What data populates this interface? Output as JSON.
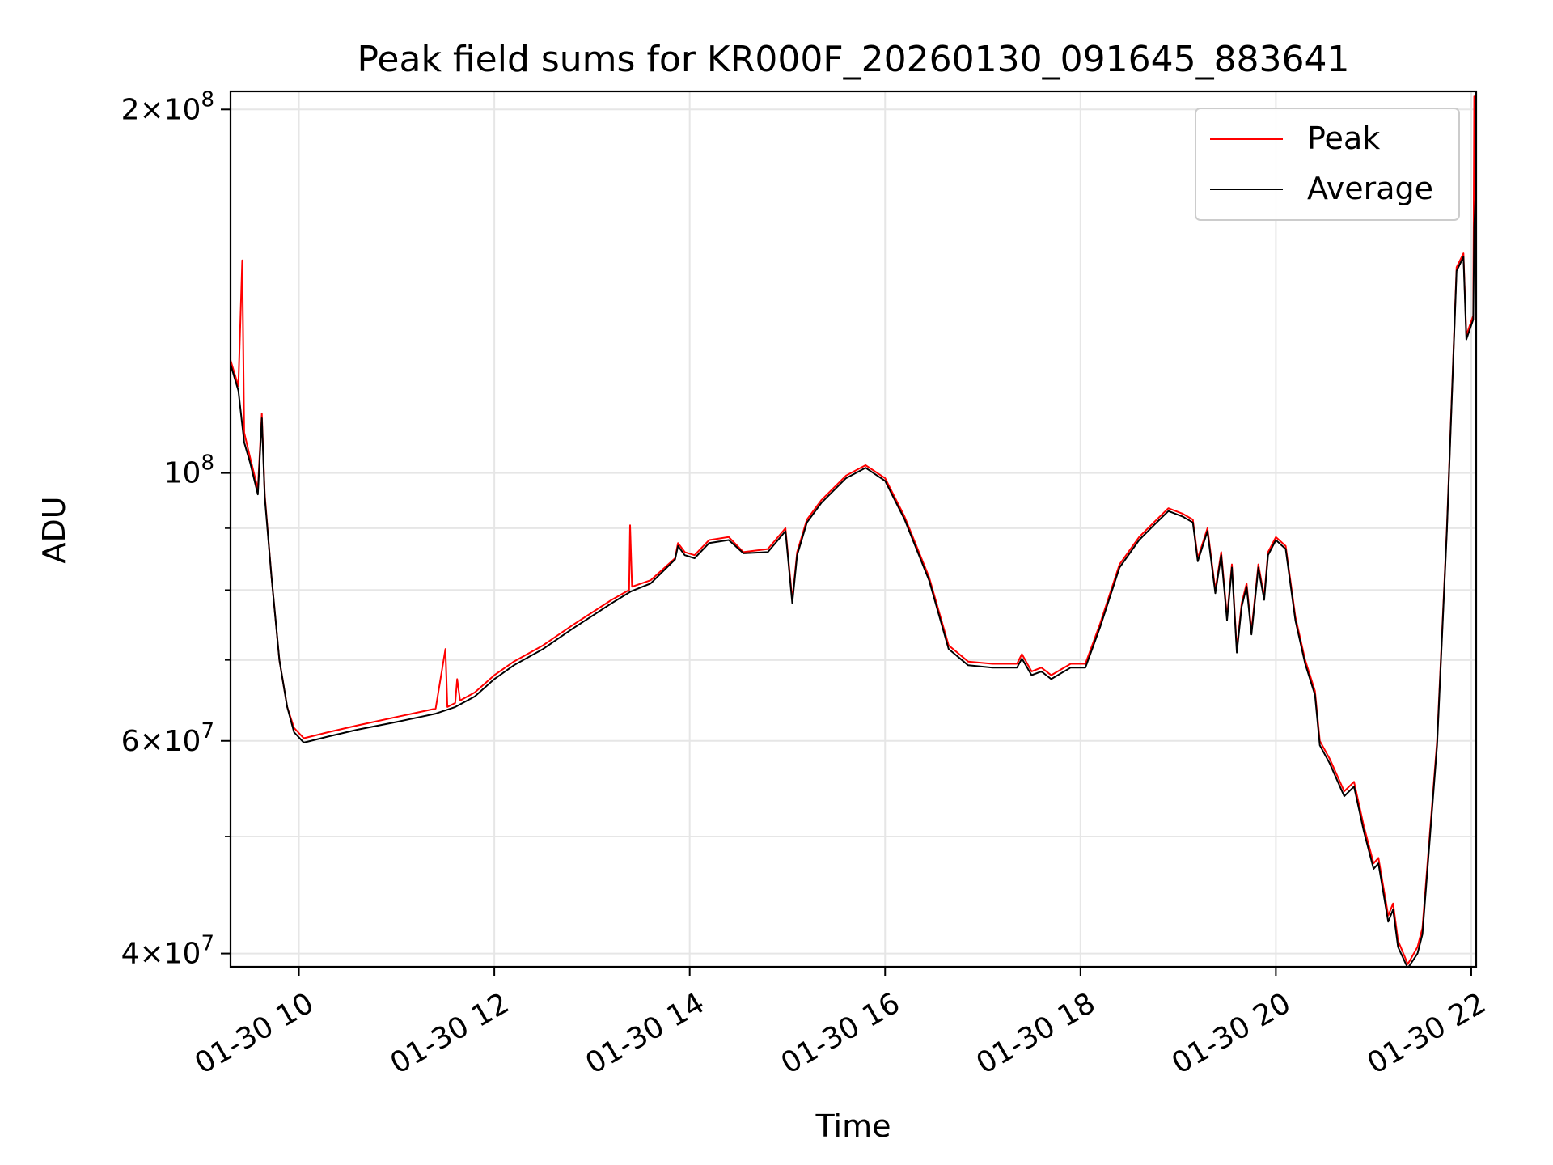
{
  "chart_data": {
    "type": "line",
    "title": "Peak field sums for KR000F_20260130_091645_883641",
    "xlabel": "Time",
    "ylabel": "ADU",
    "yscale": "log",
    "grid": true,
    "legend_position": "top-right",
    "xlim": [
      9.3,
      22.05
    ],
    "ylim": [
      39000000,
      207000000
    ],
    "x_ticks": [
      {
        "value": 10,
        "label": "01-30 10"
      },
      {
        "value": 12,
        "label": "01-30 12"
      },
      {
        "value": 14,
        "label": "01-30 14"
      },
      {
        "value": 16,
        "label": "01-30 16"
      },
      {
        "value": 18,
        "label": "01-30 18"
      },
      {
        "value": 20,
        "label": "01-30 20"
      },
      {
        "value": 22,
        "label": "01-30 22"
      }
    ],
    "y_major_ticks": [
      {
        "value": 40000000,
        "base": "4",
        "exp": "7"
      },
      {
        "value": 60000000,
        "base": "6",
        "exp": "7"
      },
      {
        "value": 100000000,
        "base": "",
        "exp": "8"
      },
      {
        "value": 200000000,
        "base": "2",
        "exp": "8"
      }
    ],
    "y_minor_ticks": [
      50000000,
      70000000,
      80000000,
      90000000
    ],
    "times_symbol": "×",
    "ten": "10",
    "series": [
      {
        "name": "Peak",
        "color": "#ff0000",
        "points": [
          [
            9.3,
            124000000
          ],
          [
            9.38,
            118000000
          ],
          [
            9.42,
            150000000
          ],
          [
            9.44,
            108000000
          ],
          [
            9.5,
            103000000
          ],
          [
            9.58,
            97000000
          ],
          [
            9.62,
            112000000
          ],
          [
            9.65,
            96000000
          ],
          [
            9.72,
            82000000
          ],
          [
            9.8,
            70000000
          ],
          [
            9.88,
            64000000
          ],
          [
            9.95,
            61500000
          ],
          [
            10.05,
            60300000
          ],
          [
            10.3,
            61000000
          ],
          [
            10.6,
            61800000
          ],
          [
            11.0,
            62800000
          ],
          [
            11.4,
            63800000
          ],
          [
            11.5,
            71500000
          ],
          [
            11.52,
            64000000
          ],
          [
            11.6,
            64500000
          ],
          [
            11.62,
            67500000
          ],
          [
            11.65,
            64800000
          ],
          [
            11.8,
            65800000
          ],
          [
            12.0,
            68000000
          ],
          [
            12.2,
            69800000
          ],
          [
            12.5,
            72000000
          ],
          [
            12.8,
            74800000
          ],
          [
            13.2,
            78500000
          ],
          [
            13.38,
            80000000
          ],
          [
            13.39,
            90500000
          ],
          [
            13.41,
            80500000
          ],
          [
            13.6,
            81500000
          ],
          [
            13.85,
            85000000
          ],
          [
            13.88,
            87500000
          ],
          [
            13.95,
            86000000
          ],
          [
            14.05,
            85500000
          ],
          [
            14.2,
            88000000
          ],
          [
            14.4,
            88500000
          ],
          [
            14.55,
            86000000
          ],
          [
            14.8,
            86500000
          ],
          [
            14.98,
            90000000
          ],
          [
            15.05,
            78500000
          ],
          [
            15.1,
            86000000
          ],
          [
            15.2,
            91500000
          ],
          [
            15.35,
            95000000
          ],
          [
            15.6,
            99500000
          ],
          [
            15.8,
            101500000
          ],
          [
            16.0,
            99000000
          ],
          [
            16.2,
            92000000
          ],
          [
            16.45,
            82000000
          ],
          [
            16.65,
            72000000
          ],
          [
            16.85,
            69800000
          ],
          [
            17.1,
            69500000
          ],
          [
            17.35,
            69500000
          ],
          [
            17.4,
            70800000
          ],
          [
            17.5,
            68500000
          ],
          [
            17.6,
            69000000
          ],
          [
            17.7,
            68000000
          ],
          [
            17.9,
            69500000
          ],
          [
            18.05,
            69500000
          ],
          [
            18.2,
            75000000
          ],
          [
            18.4,
            84000000
          ],
          [
            18.6,
            88500000
          ],
          [
            18.75,
            91000000
          ],
          [
            18.9,
            93500000
          ],
          [
            19.05,
            92500000
          ],
          [
            19.15,
            91500000
          ],
          [
            19.2,
            85000000
          ],
          [
            19.3,
            90000000
          ],
          [
            19.38,
            80000000
          ],
          [
            19.44,
            86000000
          ],
          [
            19.5,
            76000000
          ],
          [
            19.55,
            84000000
          ],
          [
            19.6,
            71500000
          ],
          [
            19.65,
            78000000
          ],
          [
            19.7,
            81000000
          ],
          [
            19.75,
            74000000
          ],
          [
            19.82,
            84000000
          ],
          [
            19.88,
            79000000
          ],
          [
            19.92,
            86000000
          ],
          [
            20.0,
            88500000
          ],
          [
            20.1,
            87000000
          ],
          [
            20.2,
            76000000
          ],
          [
            20.3,
            70000000
          ],
          [
            20.4,
            66000000
          ],
          [
            20.45,
            60000000
          ],
          [
            20.55,
            58000000
          ],
          [
            20.7,
            54500000
          ],
          [
            20.8,
            55500000
          ],
          [
            20.9,
            51000000
          ],
          [
            21.0,
            47500000
          ],
          [
            21.05,
            48000000
          ],
          [
            21.15,
            43000000
          ],
          [
            21.2,
            44000000
          ],
          [
            21.25,
            41000000
          ],
          [
            21.35,
            39200000
          ],
          [
            21.45,
            40500000
          ],
          [
            21.5,
            42000000
          ],
          [
            21.65,
            60000000
          ],
          [
            21.75,
            90000000
          ],
          [
            21.85,
            148000000
          ],
          [
            21.92,
            152000000
          ],
          [
            21.95,
            130000000
          ],
          [
            22.02,
            135000000
          ],
          [
            22.03,
            205000000
          ],
          [
            22.05,
            190000000
          ]
        ]
      },
      {
        "name": "Average",
        "color": "#000000",
        "points": [
          [
            9.3,
            123000000
          ],
          [
            9.38,
            117000000
          ],
          [
            9.44,
            106000000
          ],
          [
            9.5,
            102000000
          ],
          [
            9.58,
            96000000
          ],
          [
            9.62,
            111000000
          ],
          [
            9.65,
            95500000
          ],
          [
            9.72,
            82000000
          ],
          [
            9.8,
            70000000
          ],
          [
            9.88,
            64000000
          ],
          [
            9.95,
            61000000
          ],
          [
            10.05,
            59800000
          ],
          [
            10.3,
            60500000
          ],
          [
            10.6,
            61300000
          ],
          [
            11.0,
            62200000
          ],
          [
            11.4,
            63200000
          ],
          [
            11.6,
            64000000
          ],
          [
            11.8,
            65300000
          ],
          [
            12.0,
            67500000
          ],
          [
            12.2,
            69300000
          ],
          [
            12.5,
            71500000
          ],
          [
            12.8,
            74300000
          ],
          [
            13.2,
            78000000
          ],
          [
            13.4,
            79800000
          ],
          [
            13.6,
            81000000
          ],
          [
            13.85,
            84800000
          ],
          [
            13.88,
            87000000
          ],
          [
            13.95,
            85500000
          ],
          [
            14.05,
            85000000
          ],
          [
            14.2,
            87500000
          ],
          [
            14.4,
            88000000
          ],
          [
            14.55,
            85800000
          ],
          [
            14.8,
            86000000
          ],
          [
            14.98,
            89500000
          ],
          [
            15.05,
            78000000
          ],
          [
            15.1,
            85500000
          ],
          [
            15.2,
            91000000
          ],
          [
            15.35,
            94500000
          ],
          [
            15.6,
            99000000
          ],
          [
            15.8,
            101000000
          ],
          [
            16.0,
            98500000
          ],
          [
            16.2,
            91500000
          ],
          [
            16.45,
            81500000
          ],
          [
            16.65,
            71500000
          ],
          [
            16.85,
            69300000
          ],
          [
            17.1,
            69000000
          ],
          [
            17.35,
            69000000
          ],
          [
            17.4,
            70200000
          ],
          [
            17.5,
            68000000
          ],
          [
            17.6,
            68500000
          ],
          [
            17.7,
            67500000
          ],
          [
            17.9,
            69000000
          ],
          [
            18.05,
            69000000
          ],
          [
            18.2,
            74500000
          ],
          [
            18.4,
            83500000
          ],
          [
            18.6,
            88000000
          ],
          [
            18.75,
            90500000
          ],
          [
            18.9,
            93000000
          ],
          [
            19.05,
            92000000
          ],
          [
            19.15,
            91000000
          ],
          [
            19.2,
            84500000
          ],
          [
            19.3,
            89500000
          ],
          [
            19.38,
            79500000
          ],
          [
            19.44,
            85500000
          ],
          [
            19.5,
            75500000
          ],
          [
            19.55,
            83500000
          ],
          [
            19.6,
            71000000
          ],
          [
            19.65,
            77500000
          ],
          [
            19.7,
            80500000
          ],
          [
            19.75,
            73500000
          ],
          [
            19.82,
            83500000
          ],
          [
            19.88,
            78500000
          ],
          [
            19.92,
            85500000
          ],
          [
            20.0,
            88000000
          ],
          [
            20.1,
            86500000
          ],
          [
            20.2,
            75500000
          ],
          [
            20.3,
            69500000
          ],
          [
            20.4,
            65500000
          ],
          [
            20.45,
            59500000
          ],
          [
            20.55,
            57500000
          ],
          [
            20.7,
            54000000
          ],
          [
            20.8,
            55000000
          ],
          [
            20.9,
            50500000
          ],
          [
            21.0,
            47000000
          ],
          [
            21.05,
            47500000
          ],
          [
            21.15,
            42500000
          ],
          [
            21.2,
            43500000
          ],
          [
            21.25,
            40500000
          ],
          [
            21.35,
            38900000
          ],
          [
            21.45,
            40000000
          ],
          [
            21.5,
            41500000
          ],
          [
            21.65,
            59500000
          ],
          [
            21.75,
            89500000
          ],
          [
            21.85,
            147000000
          ],
          [
            21.92,
            151000000
          ],
          [
            21.95,
            129000000
          ],
          [
            22.02,
            134000000
          ],
          [
            22.03,
            160000000
          ],
          [
            22.05,
            175000000
          ]
        ]
      }
    ]
  }
}
